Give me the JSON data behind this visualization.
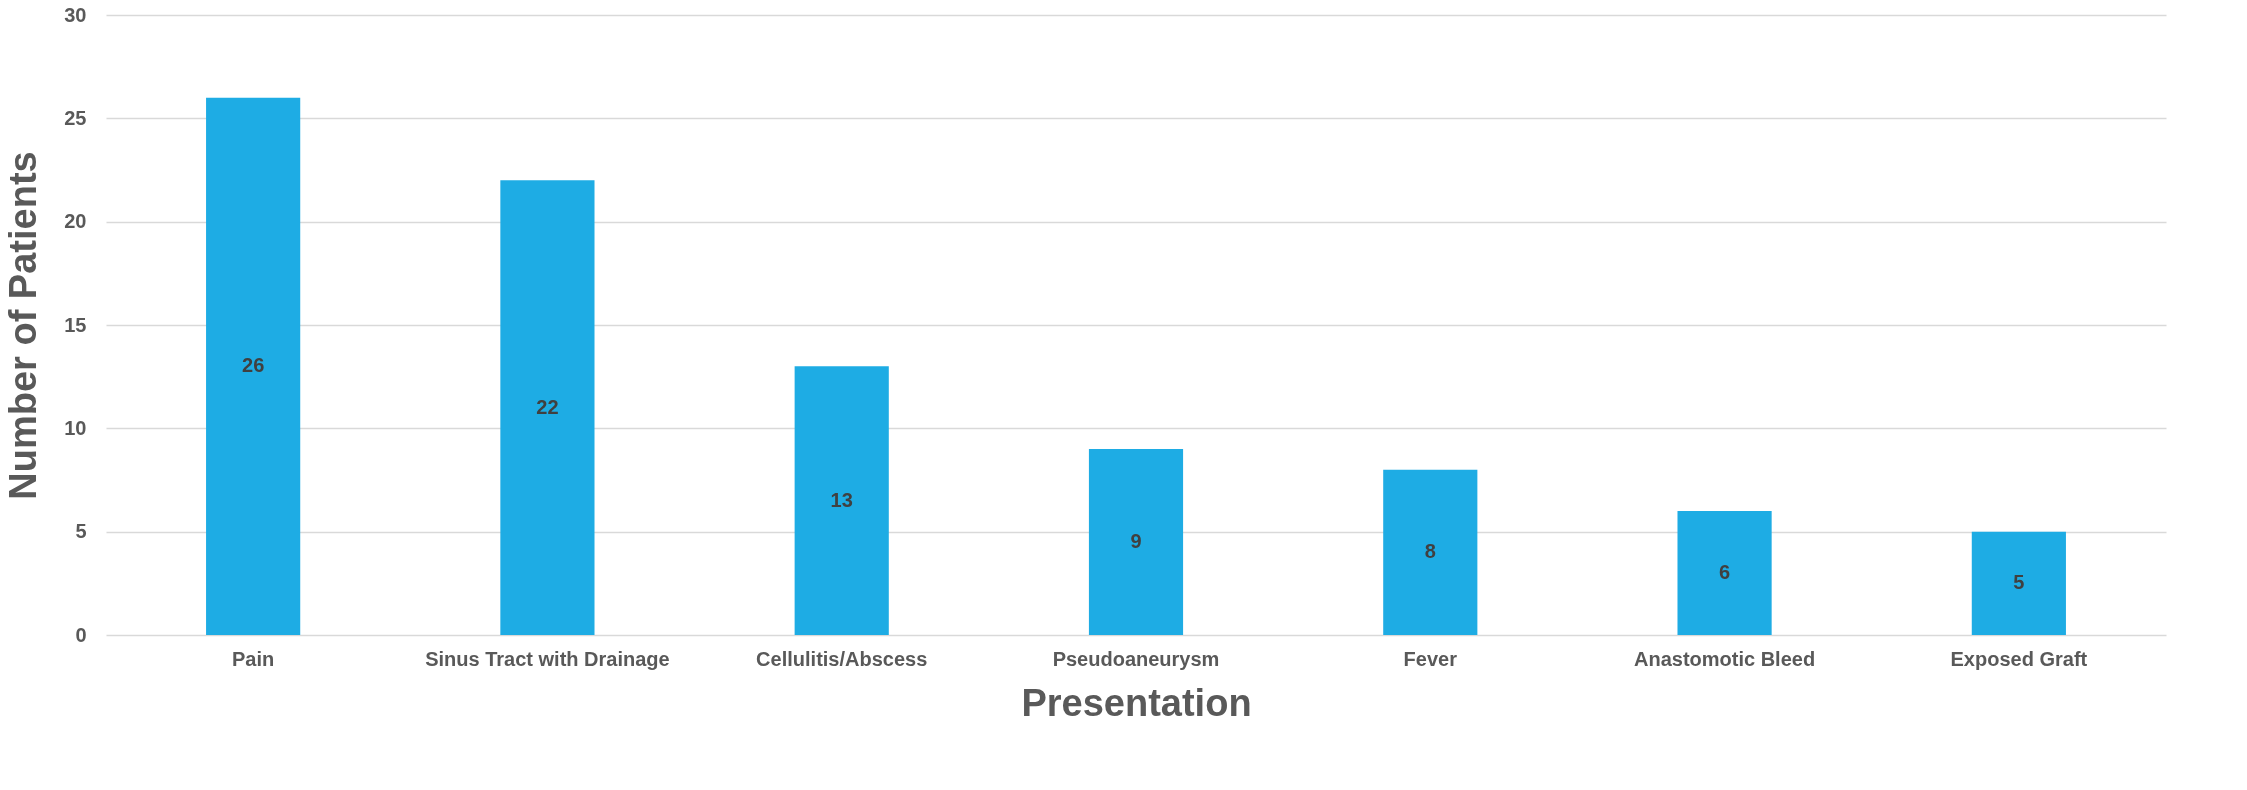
{
  "chart_data": {
    "type": "bar",
    "xlabel": "Presentation",
    "ylabel": "Number of Patients",
    "categories": [
      "Pain",
      "Sinus Tract with Drainage",
      "Cellulitis/Abscess",
      "Pseudoaneurysm",
      "Fever",
      "Anastomotic Bleed",
      "Exposed Graft"
    ],
    "values": [
      26,
      22,
      13,
      9,
      8,
      6,
      5
    ],
    "color": "#1eace4",
    "ylim": [
      0,
      30
    ],
    "yticks": [
      0,
      5,
      10,
      15,
      20,
      25,
      30
    ],
    "grid": "y",
    "data_labels": true
  }
}
